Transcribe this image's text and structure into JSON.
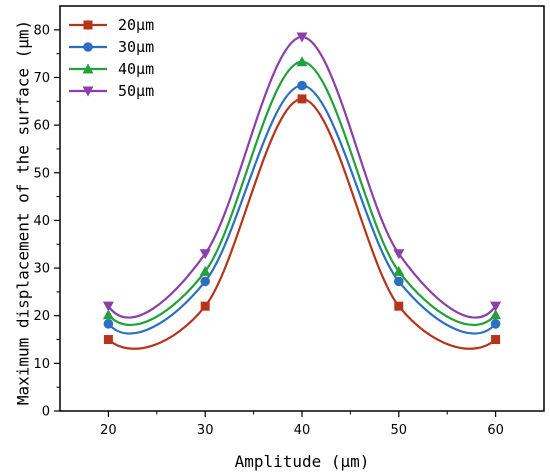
{
  "chart_data": {
    "type": "line",
    "title": "",
    "xlabel": "Amplitude (μm)",
    "ylabel": "Maximum displacement of the surface (μm)",
    "x": [
      20,
      30,
      40,
      50,
      60
    ],
    "xlim": [
      15,
      65
    ],
    "ylim": [
      0,
      85
    ],
    "x_ticks": [
      20,
      30,
      40,
      50,
      60
    ],
    "y_ticks": [
      0,
      10,
      20,
      30,
      40,
      50,
      60,
      70,
      80
    ],
    "grid": false,
    "legend_position": "top-left",
    "smooth": true,
    "series": [
      {
        "name": "20μm",
        "color": "#b5341a",
        "marker": "square",
        "values": [
          15.0,
          22.0,
          65.5,
          22.0,
          15.0
        ]
      },
      {
        "name": "30μm",
        "color": "#2a6fc0",
        "marker": "circle",
        "values": [
          18.3,
          27.2,
          68.3,
          27.2,
          18.3
        ]
      },
      {
        "name": "40μm",
        "color": "#22a03a",
        "marker": "triangle",
        "values": [
          20.2,
          29.3,
          73.3,
          29.3,
          20.2
        ]
      },
      {
        "name": "50μm",
        "color": "#8b3fa8",
        "marker": "triangle-down",
        "values": [
          22.0,
          33.0,
          78.5,
          33.0,
          22.0
        ]
      }
    ]
  }
}
